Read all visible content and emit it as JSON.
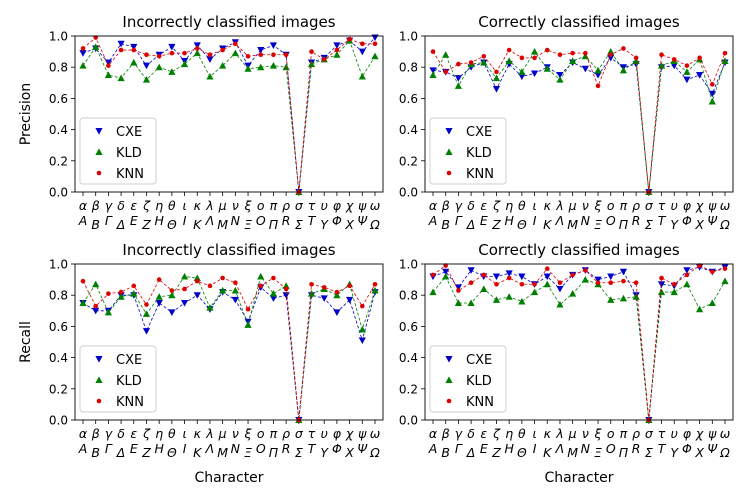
{
  "chart_data": [
    {
      "type": "line",
      "title": "Incorrectly classified images",
      "ylabel": "Precision",
      "xlabel": "",
      "ylim": [
        0,
        1
      ],
      "yticks": [
        "0.0",
        "0.2",
        "0.4",
        "0.6",
        "0.8",
        "1.0"
      ],
      "categories": [
        "α/A",
        "β/B",
        "γ/Γ",
        "δ/Δ",
        "ε/E",
        "ζ/Z",
        "η/H",
        "θ/Θ",
        "ι/I",
        "κ/K",
        "λ/Λ",
        "μ/M",
        "ν/N",
        "ξ/Ξ",
        "ο/O",
        "π/Π",
        "ρ/R",
        "σ/Σ",
        "τ/T",
        "υ/Y",
        "φ/Φ",
        "χ/X",
        "ψ/Ψ",
        "ω/Ω"
      ],
      "legend": "bottom-left",
      "grid": false,
      "series": [
        {
          "name": "CXE",
          "color": "#0000cc",
          "marker": "triangle-down",
          "values": [
            0.89,
            0.92,
            0.83,
            0.95,
            0.93,
            0.81,
            0.88,
            0.93,
            0.84,
            0.94,
            0.85,
            0.92,
            0.96,
            0.81,
            0.91,
            0.94,
            0.88,
            0.0,
            0.83,
            0.86,
            0.94,
            0.97,
            0.9,
            0.99
          ]
        },
        {
          "name": "KLD",
          "color": "#008000",
          "marker": "triangle-up",
          "values": [
            0.81,
            0.93,
            0.75,
            0.73,
            0.83,
            0.72,
            0.8,
            0.77,
            0.82,
            0.89,
            0.74,
            0.81,
            0.89,
            0.79,
            0.8,
            0.81,
            0.8,
            0.0,
            0.82,
            0.85,
            0.88,
            0.97,
            0.74,
            0.87
          ]
        },
        {
          "name": "KNN",
          "color": "#dd0000",
          "marker": "dot",
          "values": [
            0.92,
            0.99,
            0.81,
            0.91,
            0.91,
            0.88,
            0.87,
            0.89,
            0.89,
            0.92,
            0.88,
            0.91,
            0.95,
            0.87,
            0.88,
            0.88,
            0.88,
            0.0,
            0.9,
            0.85,
            0.91,
            0.98,
            0.95,
            0.95
          ]
        }
      ]
    },
    {
      "type": "line",
      "title": "Correctly classified images",
      "ylabel": "",
      "xlabel": "",
      "ylim": [
        0,
        1
      ],
      "yticks": [
        "0.0",
        "0.2",
        "0.4",
        "0.6",
        "0.8",
        "1.0"
      ],
      "categories": [
        "α/A",
        "β/B",
        "γ/Γ",
        "δ/Δ",
        "ε/E",
        "ζ/Z",
        "η/H",
        "θ/Θ",
        "ι/I",
        "κ/K",
        "λ/Λ",
        "μ/M",
        "ν/N",
        "ξ/Ξ",
        "ο/O",
        "π/Π",
        "ρ/R",
        "σ/Σ",
        "τ/T",
        "υ/Y",
        "φ/Φ",
        "χ/X",
        "ψ/Ψ",
        "ω/Ω"
      ],
      "legend": "bottom-left",
      "grid": false,
      "series": [
        {
          "name": "CXE",
          "color": "#0000cc",
          "marker": "triangle-down",
          "values": [
            0.78,
            0.77,
            0.73,
            0.8,
            0.83,
            0.66,
            0.82,
            0.74,
            0.76,
            0.8,
            0.75,
            0.83,
            0.79,
            0.75,
            0.86,
            0.8,
            0.82,
            0.0,
            0.8,
            0.81,
            0.72,
            0.75,
            0.63,
            0.83
          ]
        },
        {
          "name": "KLD",
          "color": "#008000",
          "marker": "triangle-up",
          "values": [
            0.75,
            0.88,
            0.68,
            0.82,
            0.83,
            0.73,
            0.84,
            0.77,
            0.9,
            0.79,
            0.72,
            0.84,
            0.87,
            0.78,
            0.9,
            0.78,
            0.84,
            0.0,
            0.81,
            0.84,
            0.77,
            0.85,
            0.58,
            0.84
          ]
        },
        {
          "name": "KNN",
          "color": "#dd0000",
          "marker": "dot",
          "values": [
            0.9,
            0.77,
            0.82,
            0.83,
            0.87,
            0.77,
            0.91,
            0.86,
            0.86,
            0.91,
            0.88,
            0.89,
            0.89,
            0.68,
            0.88,
            0.92,
            0.86,
            0.0,
            0.88,
            0.85,
            0.81,
            0.86,
            0.69,
            0.89
          ]
        }
      ]
    },
    {
      "type": "line",
      "title": "Incorrectly classified images",
      "ylabel": "Recall",
      "xlabel": "Character",
      "ylim": [
        0,
        1
      ],
      "yticks": [
        "0.0",
        "0.2",
        "0.4",
        "0.6",
        "0.8",
        "1.0"
      ],
      "categories": [
        "α/A",
        "β/B",
        "γ/Γ",
        "δ/Δ",
        "ε/E",
        "ζ/Z",
        "η/H",
        "θ/Θ",
        "ι/I",
        "κ/K",
        "λ/Λ",
        "μ/M",
        "ν/N",
        "ξ/Ξ",
        "ο/O",
        "π/Π",
        "ρ/R",
        "σ/Σ",
        "τ/T",
        "υ/Y",
        "φ/Φ",
        "χ/X",
        "ψ/Ψ",
        "ω/Ω"
      ],
      "legend": "bottom-left",
      "grid": false,
      "series": [
        {
          "name": "CXE",
          "color": "#0000cc",
          "marker": "triangle-down",
          "values": [
            0.75,
            0.7,
            0.7,
            0.8,
            0.8,
            0.57,
            0.75,
            0.69,
            0.75,
            0.8,
            0.71,
            0.82,
            0.77,
            0.63,
            0.85,
            0.78,
            0.8,
            0.0,
            0.8,
            0.78,
            0.69,
            0.77,
            0.51,
            0.82
          ]
        },
        {
          "name": "KLD",
          "color": "#008000",
          "marker": "triangle-up",
          "values": [
            0.75,
            0.87,
            0.69,
            0.79,
            0.81,
            0.68,
            0.79,
            0.8,
            0.92,
            0.91,
            0.72,
            0.83,
            0.83,
            0.61,
            0.92,
            0.81,
            0.86,
            0.0,
            0.81,
            0.84,
            0.8,
            0.87,
            0.58,
            0.83
          ]
        },
        {
          "name": "KNN",
          "color": "#dd0000",
          "marker": "dot",
          "values": [
            0.89,
            0.73,
            0.81,
            0.82,
            0.86,
            0.74,
            0.9,
            0.83,
            0.84,
            0.89,
            0.86,
            0.91,
            0.88,
            0.71,
            0.86,
            0.91,
            0.84,
            0.0,
            0.87,
            0.85,
            0.82,
            0.86,
            0.73,
            0.87
          ]
        }
      ]
    },
    {
      "type": "line",
      "title": "Correctly classified images",
      "ylabel": "",
      "xlabel": "Character",
      "ylim": [
        0,
        1
      ],
      "yticks": [
        "0.0",
        "0.2",
        "0.4",
        "0.6",
        "0.8",
        "1.0"
      ],
      "categories": [
        "α/A",
        "β/B",
        "γ/Γ",
        "δ/Δ",
        "ε/E",
        "ζ/Z",
        "η/H",
        "θ/Θ",
        "ι/I",
        "κ/K",
        "λ/Λ",
        "μ/M",
        "ν/N",
        "ξ/Ξ",
        "ο/O",
        "π/Π",
        "ρ/R",
        "σ/Σ",
        "τ/T",
        "υ/Y",
        "φ/Φ",
        "χ/X",
        "ψ/Ψ",
        "ω/Ω"
      ],
      "legend": "bottom-left",
      "grid": false,
      "series": [
        {
          "name": "CXE",
          "color": "#0000cc",
          "marker": "triangle-down",
          "values": [
            0.92,
            0.95,
            0.85,
            0.96,
            0.92,
            0.92,
            0.94,
            0.92,
            0.87,
            0.92,
            0.84,
            0.93,
            0.96,
            0.9,
            0.92,
            0.95,
            0.8,
            0.0,
            0.87,
            0.86,
            0.96,
            0.98,
            0.95,
            0.98
          ]
        },
        {
          "name": "KLD",
          "color": "#008000",
          "marker": "triangle-up",
          "values": [
            0.82,
            0.92,
            0.75,
            0.75,
            0.84,
            0.77,
            0.79,
            0.76,
            0.82,
            0.87,
            0.74,
            0.81,
            0.9,
            0.87,
            0.77,
            0.78,
            0.79,
            0.0,
            0.82,
            0.82,
            0.87,
            0.71,
            0.75,
            0.89
          ]
        },
        {
          "name": "KNN",
          "color": "#dd0000",
          "marker": "dot",
          "values": [
            0.93,
            0.99,
            0.83,
            0.88,
            0.93,
            0.87,
            0.91,
            0.87,
            0.87,
            0.97,
            0.88,
            0.93,
            0.96,
            0.88,
            0.88,
            0.89,
            0.88,
            0.0,
            0.91,
            0.87,
            0.93,
            0.99,
            0.95,
            0.97
          ]
        }
      ]
    }
  ],
  "x_tick_labels": {
    "lower": [
      "α",
      "β",
      "γ",
      "δ",
      "ε",
      "ζ",
      "η",
      "θ",
      "ι",
      "κ",
      "λ",
      "μ",
      "ν",
      "ξ",
      "ο",
      "π",
      "ρ",
      "σ",
      "τ",
      "υ",
      "φ",
      "χ",
      "ψ",
      "ω"
    ],
    "upper": [
      "A",
      "B",
      "Γ",
      "Δ",
      "E",
      "Z",
      "H",
      "Θ",
      "I",
      "K",
      "Λ",
      "M",
      "N",
      "Ξ",
      "O",
      "Π",
      "R",
      "Σ",
      "T",
      "Y",
      "Φ",
      "X",
      "Ψ",
      "Ω"
    ]
  }
}
